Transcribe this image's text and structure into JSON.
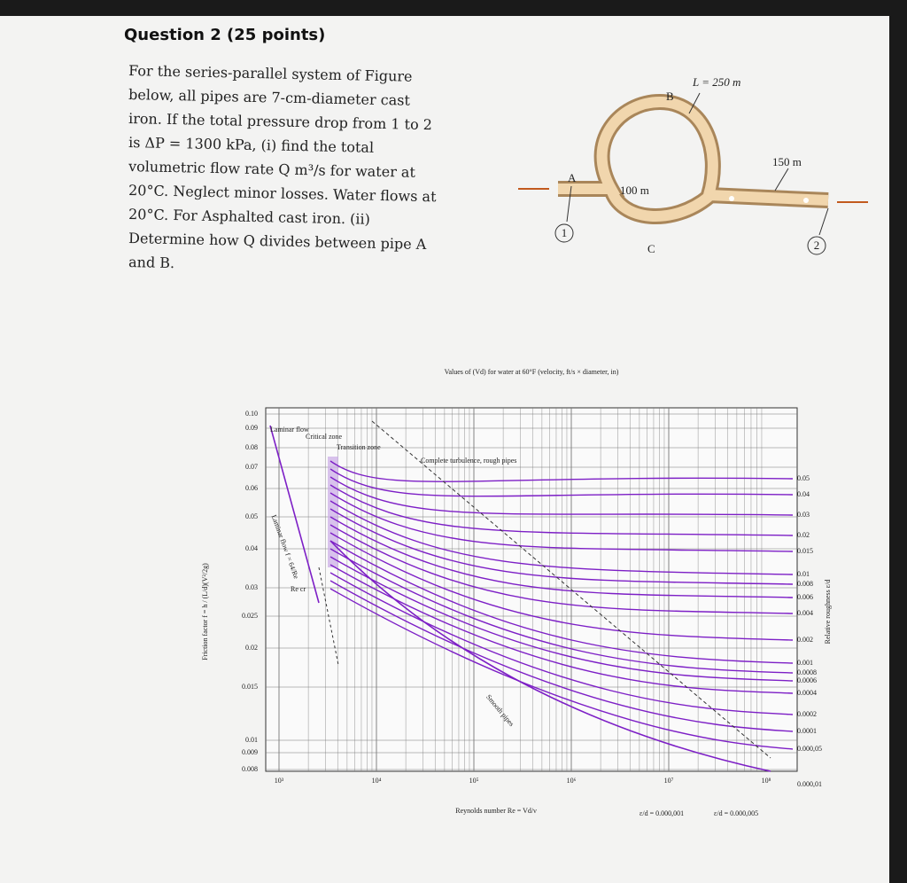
{
  "question": {
    "title": "Question 2 (25 points)",
    "lines": [
      "For the series-parallel system of Figure",
      "below, all pipes are 7-cm-diameter cast",
      "iron. If the total pressure drop from 1 to 2",
      "is ΔP = 1300 kPa, (i) find the total",
      "volumetric flow rate  Q m³/s  for water at",
      "20°C. Neglect minor losses. Water flows at",
      "20°C. For Asphalted cast iron.  (ii)",
      "Determine how Q divides between pipe A",
      "and B."
    ]
  },
  "figure": {
    "length_b": "L = 250 m",
    "label_b": "B",
    "length_right": "150 m",
    "label_a": "A",
    "length_c": "100 m",
    "label_c": "C",
    "node_1": "1",
    "node_2": "2"
  },
  "moody": {
    "top_caption": "Values of (Vd) for water at 60°F (velocity, ft/s × diameter, in)",
    "friction_ticks": [
      "0.10",
      "0.09",
      "0.08",
      "0.07",
      "0.06",
      "0.05",
      "0.04",
      "0.03",
      "0.025",
      "0.02",
      "0.015",
      "0.01",
      "0.009",
      "0.008"
    ],
    "roughness_ticks": [
      "0.05",
      "0.04",
      "0.03",
      "0.02",
      "0.015",
      "0.01",
      "0.008",
      "0.006",
      "0.004",
      "0.002",
      "0.001",
      "0.0008",
      "0.0006",
      "0.0004",
      "0.0002",
      "0.0001",
      "0.000,05",
      "0.000,01"
    ],
    "reynolds_ticks": [
      "10³",
      "10⁴",
      "10⁵",
      "10⁶",
      "10⁷",
      "10⁸"
    ],
    "x_label": "Reynolds number Re = Vd/ν",
    "y_label": "Friction factor f = h / (L/d)(V²/2g)",
    "y2_label": "Relative roughness ε/d",
    "zones": [
      "Laminar flow",
      "Critical zone",
      "Transition zone",
      "Complete turbulence, rough pipes",
      "Laminar flow  f = 64/Re",
      "Re cr",
      "Smooth pipes"
    ],
    "notes": [
      "ε/d = 0.000,001",
      "ε/d = 0.000,005"
    ]
  }
}
